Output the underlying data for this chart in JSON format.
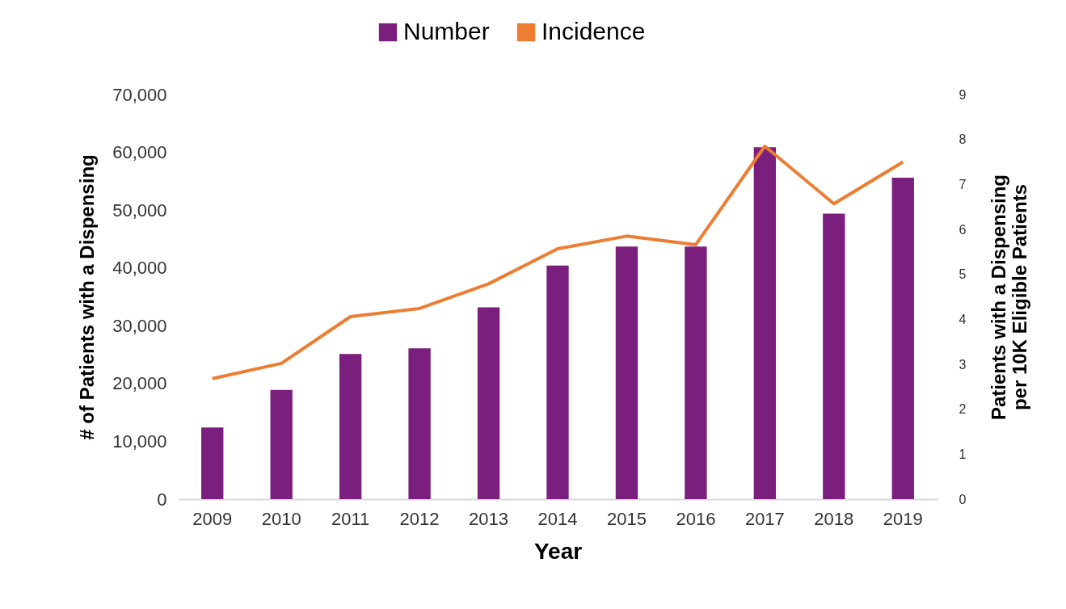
{
  "chart_data": {
    "type": "bar",
    "xlabel": "Year",
    "ylabel": "# of Patients with a Dispensing",
    "y2label": "Patients with a Dispensing\nper 10K Eligible Patients",
    "categories": [
      "2009",
      "2010",
      "2011",
      "2012",
      "2013",
      "2014",
      "2015",
      "2016",
      "2017",
      "2018",
      "2019"
    ],
    "series": [
      {
        "name": "Number",
        "color": "#7b1f7e",
        "values": [
          12400,
          18900,
          25100,
          26100,
          33200,
          40400,
          43700,
          43700,
          60900,
          49400,
          55600
        ]
      },
      {
        "name": "Incidence",
        "type": "line",
        "axis": "y2",
        "color": "#ed7d31",
        "values": [
          2.68,
          3.02,
          4.06,
          4.24,
          4.79,
          5.57,
          5.85,
          5.66,
          7.85,
          6.57,
          7.5
        ]
      }
    ],
    "ylim": [
      0,
      70000
    ],
    "yticks": [
      0,
      {
        "value": 10000,
        "label": "10,000"
      },
      {
        "value": 20000,
        "label": "20,000"
      },
      {
        "value": 30000,
        "label": "30,000"
      },
      {
        "value": 40000,
        "label": "40,000"
      },
      {
        "value": 50000,
        "label": "50,000"
      },
      {
        "value": 60000,
        "label": "60,000"
      },
      {
        "value": 70000,
        "label": "70,000"
      }
    ],
    "y2lim": [
      0,
      9
    ],
    "y2ticks": [
      0,
      1,
      2,
      3,
      4,
      5,
      6,
      7,
      8,
      9
    ],
    "legend": "top",
    "grid": false,
    "marker": "none",
    "line_style": "solid"
  }
}
